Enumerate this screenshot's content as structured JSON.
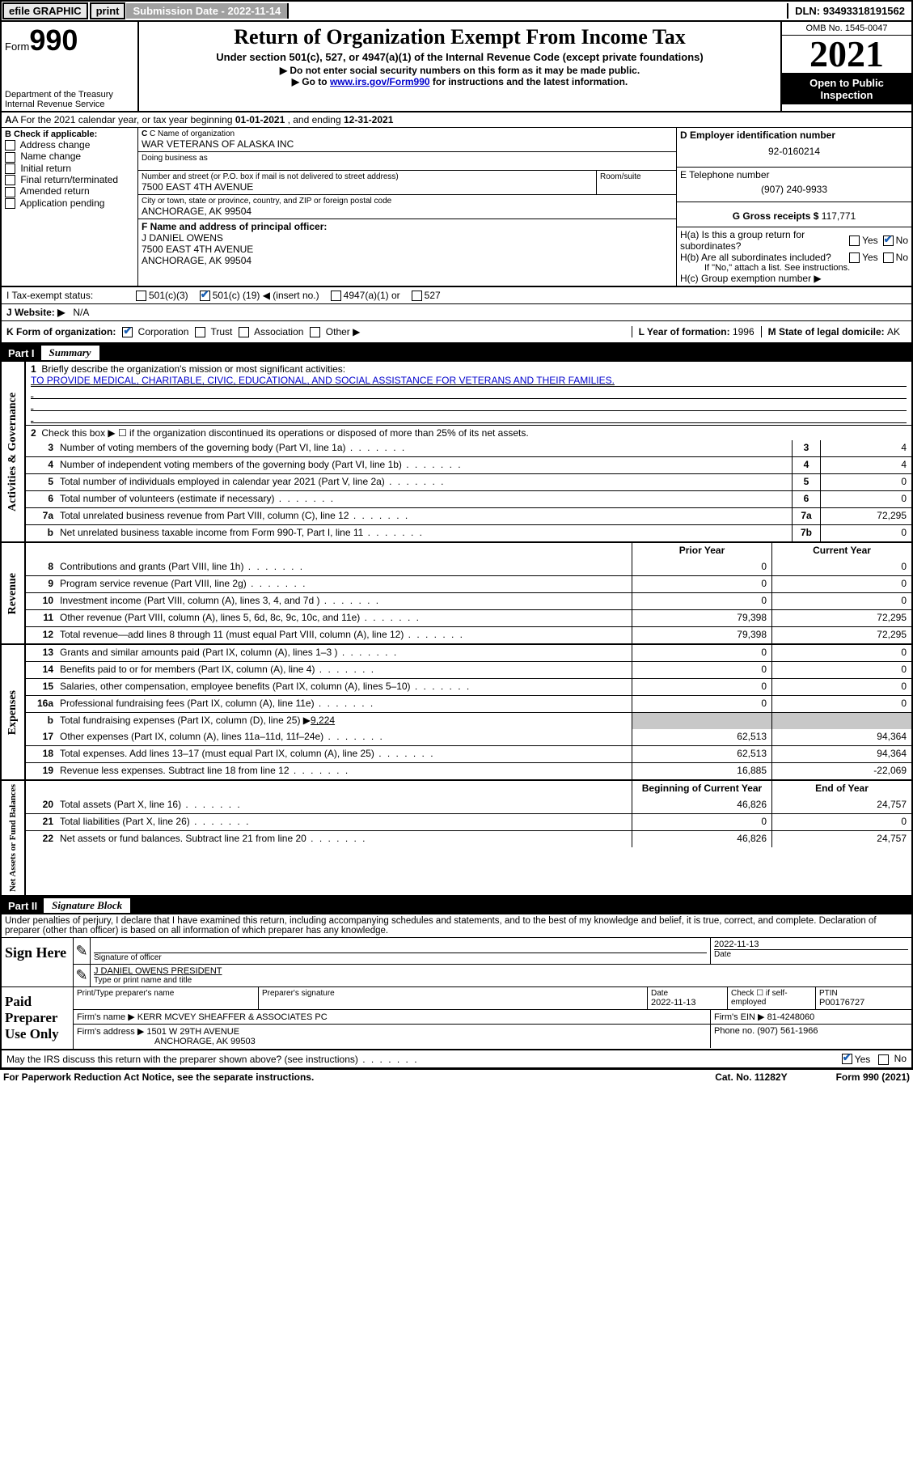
{
  "topbar": {
    "efile": "efile GRAPHIC",
    "print": "print",
    "subm_label": "Submission Date - ",
    "subm_date": "2022-11-14",
    "dln_label": "DLN: ",
    "dln": "93493318191562"
  },
  "header": {
    "form_word": "Form",
    "form_num": "990",
    "dept": "Department of the Treasury",
    "irs": "Internal Revenue Service",
    "title": "Return of Organization Exempt From Income Tax",
    "sub1": "Under section 501(c), 527, or 4947(a)(1) of the Internal Revenue Code (except private foundations)",
    "sub2": "▶ Do not enter social security numbers on this form as it may be made public.",
    "sub3a": "▶ Go to ",
    "sub3link": "www.irs.gov/Form990",
    "sub3b": " for instructions and the latest information.",
    "omb": "OMB No. 1545-0047",
    "year": "2021",
    "open": "Open to Public Inspection"
  },
  "lineA": {
    "pre": "A For the 2021 calendar year, or tax year beginning ",
    "begin": "01-01-2021",
    "mid": " , and ending ",
    "end": "12-31-2021"
  },
  "colB": {
    "label": "B Check if applicable:",
    "items": [
      "Address change",
      "Name change",
      "Initial return",
      "Final return/terminated",
      "Amended return",
      "Application pending"
    ]
  },
  "colC": {
    "name_lbl": "C Name of organization",
    "name": "WAR VETERANS OF ALASKA INC",
    "dba_lbl": "Doing business as",
    "dba": "",
    "street_lbl": "Number and street (or P.O. box if mail is not delivered to street address)",
    "room_lbl": "Room/suite",
    "street": "7500 EAST 4TH AVENUE",
    "city_lbl": "City or town, state or province, country, and ZIP or foreign postal code",
    "city": "ANCHORAGE, AK  99504",
    "F_lbl": "F Name and address of principal officer:",
    "F_name": "J DANIEL OWENS",
    "F_street": "7500 EAST 4TH AVENUE",
    "F_city": "ANCHORAGE, AK  99504"
  },
  "colD": {
    "ein_lbl": "D Employer identification number",
    "ein": "92-0160214",
    "phone_lbl": "E Telephone number",
    "phone": "(907) 240-9933",
    "gross_lbl": "G Gross receipts $ ",
    "gross": "117,771",
    "Ha": "H(a)  Is this a group return for subordinates?",
    "Hb": "H(b)  Are all subordinates included?",
    "Hb_note": "If \"No,\" attach a list. See instructions.",
    "Hc": "H(c)  Group exemption number ▶",
    "yes": "Yes",
    "no": "No"
  },
  "lineI": {
    "lbl": "I    Tax-exempt status:",
    "o1": "501(c)(3)",
    "o2a": "501(c) ( ",
    "o2insert": "19",
    "o2b": " ) ◀ (insert no.)",
    "o3": "4947(a)(1) or",
    "o4": "527"
  },
  "lineJ": {
    "lbl": "J    Website: ▶",
    "val": "N/A"
  },
  "lineK": {
    "lbl": "K Form of organization:",
    "opts": [
      "Corporation",
      "Trust",
      "Association",
      "Other ▶"
    ],
    "L_lbl": "L Year of formation: ",
    "L_val": "1996",
    "M_lbl": "M State of legal domicile: ",
    "M_val": "AK"
  },
  "part1": {
    "num": "Part I",
    "title": "Summary",
    "side_ag": "Activities & Governance",
    "side_rev": "Revenue",
    "side_exp": "Expenses",
    "side_na": "Net Assets or Fund Balances",
    "l1a": "Briefly describe the organization's mission or most significant activities:",
    "l1b": "TO PROVIDE MEDICAL, CHARITABLE, CIVIC, EDUCATIONAL, AND SOCIAL ASSISTANCE FOR VETERANS AND THEIR FAMILIES.",
    "l2": "Check this box ▶ ☐ if the organization discontinued its operations or disposed of more than 25% of its net assets.",
    "rows_ag": [
      {
        "n": "3",
        "t": "Number of voting members of the governing body (Part VI, line 1a)",
        "box": "3",
        "v": "4"
      },
      {
        "n": "4",
        "t": "Number of independent voting members of the governing body (Part VI, line 1b)",
        "box": "4",
        "v": "4"
      },
      {
        "n": "5",
        "t": "Total number of individuals employed in calendar year 2021 (Part V, line 2a)",
        "box": "5",
        "v": "0"
      },
      {
        "n": "6",
        "t": "Total number of volunteers (estimate if necessary)",
        "box": "6",
        "v": "0"
      },
      {
        "n": "7a",
        "t": "Total unrelated business revenue from Part VIII, column (C), line 12",
        "box": "7a",
        "v": "72,295"
      },
      {
        "n": "b",
        "t": "Net unrelated business taxable income from Form 990-T, Part I, line 11",
        "box": "7b",
        "v": "0"
      }
    ],
    "col_prior": "Prior Year",
    "col_curr": "Current Year",
    "rows_rev": [
      {
        "n": "8",
        "t": "Contributions and grants (Part VIII, line 1h)",
        "p": "0",
        "c": "0"
      },
      {
        "n": "9",
        "t": "Program service revenue (Part VIII, line 2g)",
        "p": "0",
        "c": "0"
      },
      {
        "n": "10",
        "t": "Investment income (Part VIII, column (A), lines 3, 4, and 7d )",
        "p": "0",
        "c": "0"
      },
      {
        "n": "11",
        "t": "Other revenue (Part VIII, column (A), lines 5, 6d, 8c, 9c, 10c, and 11e)",
        "p": "79,398",
        "c": "72,295"
      },
      {
        "n": "12",
        "t": "Total revenue—add lines 8 through 11 (must equal Part VIII, column (A), line 12)",
        "p": "79,398",
        "c": "72,295"
      }
    ],
    "rows_exp": [
      {
        "n": "13",
        "t": "Grants and similar amounts paid (Part IX, column (A), lines 1–3 )",
        "p": "0",
        "c": "0"
      },
      {
        "n": "14",
        "t": "Benefits paid to or for members (Part IX, column (A), line 4)",
        "p": "0",
        "c": "0"
      },
      {
        "n": "15",
        "t": "Salaries, other compensation, employee benefits (Part IX, column (A), lines 5–10)",
        "p": "0",
        "c": "0"
      },
      {
        "n": "16a",
        "t": "Professional fundraising fees (Part IX, column (A), line 11e)",
        "p": "0",
        "c": "0"
      }
    ],
    "l16b_a": "Total fundraising expenses (Part IX, column (D), line 25) ▶",
    "l16b_v": "9,224",
    "rows_exp2": [
      {
        "n": "17",
        "t": "Other expenses (Part IX, column (A), lines 11a–11d, 11f–24e)",
        "p": "62,513",
        "c": "94,364"
      },
      {
        "n": "18",
        "t": "Total expenses. Add lines 13–17 (must equal Part IX, column (A), line 25)",
        "p": "62,513",
        "c": "94,364"
      },
      {
        "n": "19",
        "t": "Revenue less expenses. Subtract line 18 from line 12",
        "p": "16,885",
        "c": "-22,069"
      }
    ],
    "col_beg": "Beginning of Current Year",
    "col_end": "End of Year",
    "rows_na": [
      {
        "n": "20",
        "t": "Total assets (Part X, line 16)",
        "p": "46,826",
        "c": "24,757"
      },
      {
        "n": "21",
        "t": "Total liabilities (Part X, line 26)",
        "p": "0",
        "c": "0"
      },
      {
        "n": "22",
        "t": "Net assets or fund balances. Subtract line 21 from line 20",
        "p": "46,826",
        "c": "24,757"
      }
    ]
  },
  "part2": {
    "num": "Part II",
    "title": "Signature Block",
    "decl": "Under penalties of perjury, I declare that I have examined this return, including accompanying schedules and statements, and to the best of my knowledge and belief, it is true, correct, and complete. Declaration of preparer (other than officer) is based on all information of which preparer has any knowledge.",
    "sign_here": "Sign Here",
    "sig_officer": "Signature of officer",
    "sig_date_lbl": "Date",
    "sig_date": "2022-11-13",
    "sig_name_lbl": "Type or print name and title",
    "sig_name": "J DANIEL OWENS  PRESIDENT",
    "paid": "Paid Preparer Use Only",
    "pp_name_lbl": "Print/Type preparer's name",
    "pp_sig_lbl": "Preparer's signature",
    "pp_date_lbl": "Date",
    "pp_date": "2022-11-13",
    "pp_check_lbl": "Check ☐ if self-employed",
    "pp_ptin_lbl": "PTIN",
    "pp_ptin": "P00176727",
    "firm_name_lbl": "Firm's name    ▶ ",
    "firm_name": "KERR MCVEY SHEAFFER & ASSOCIATES PC",
    "firm_ein_lbl": "Firm's EIN ▶ ",
    "firm_ein": "81-4248060",
    "firm_addr_lbl": "Firm's address ▶ ",
    "firm_addr1": "1501 W 29TH AVENUE",
    "firm_addr2": "ANCHORAGE, AK  99503",
    "firm_phone_lbl": "Phone no. ",
    "firm_phone": "(907) 561-1966",
    "may_irs": "May the IRS discuss this return with the preparer shown above? (see instructions)",
    "yes": "Yes",
    "no": "No"
  },
  "footer": {
    "pra": "For Paperwork Reduction Act Notice, see the separate instructions.",
    "cat": "Cat. No. 11282Y",
    "form": "Form 990 (2021)"
  }
}
